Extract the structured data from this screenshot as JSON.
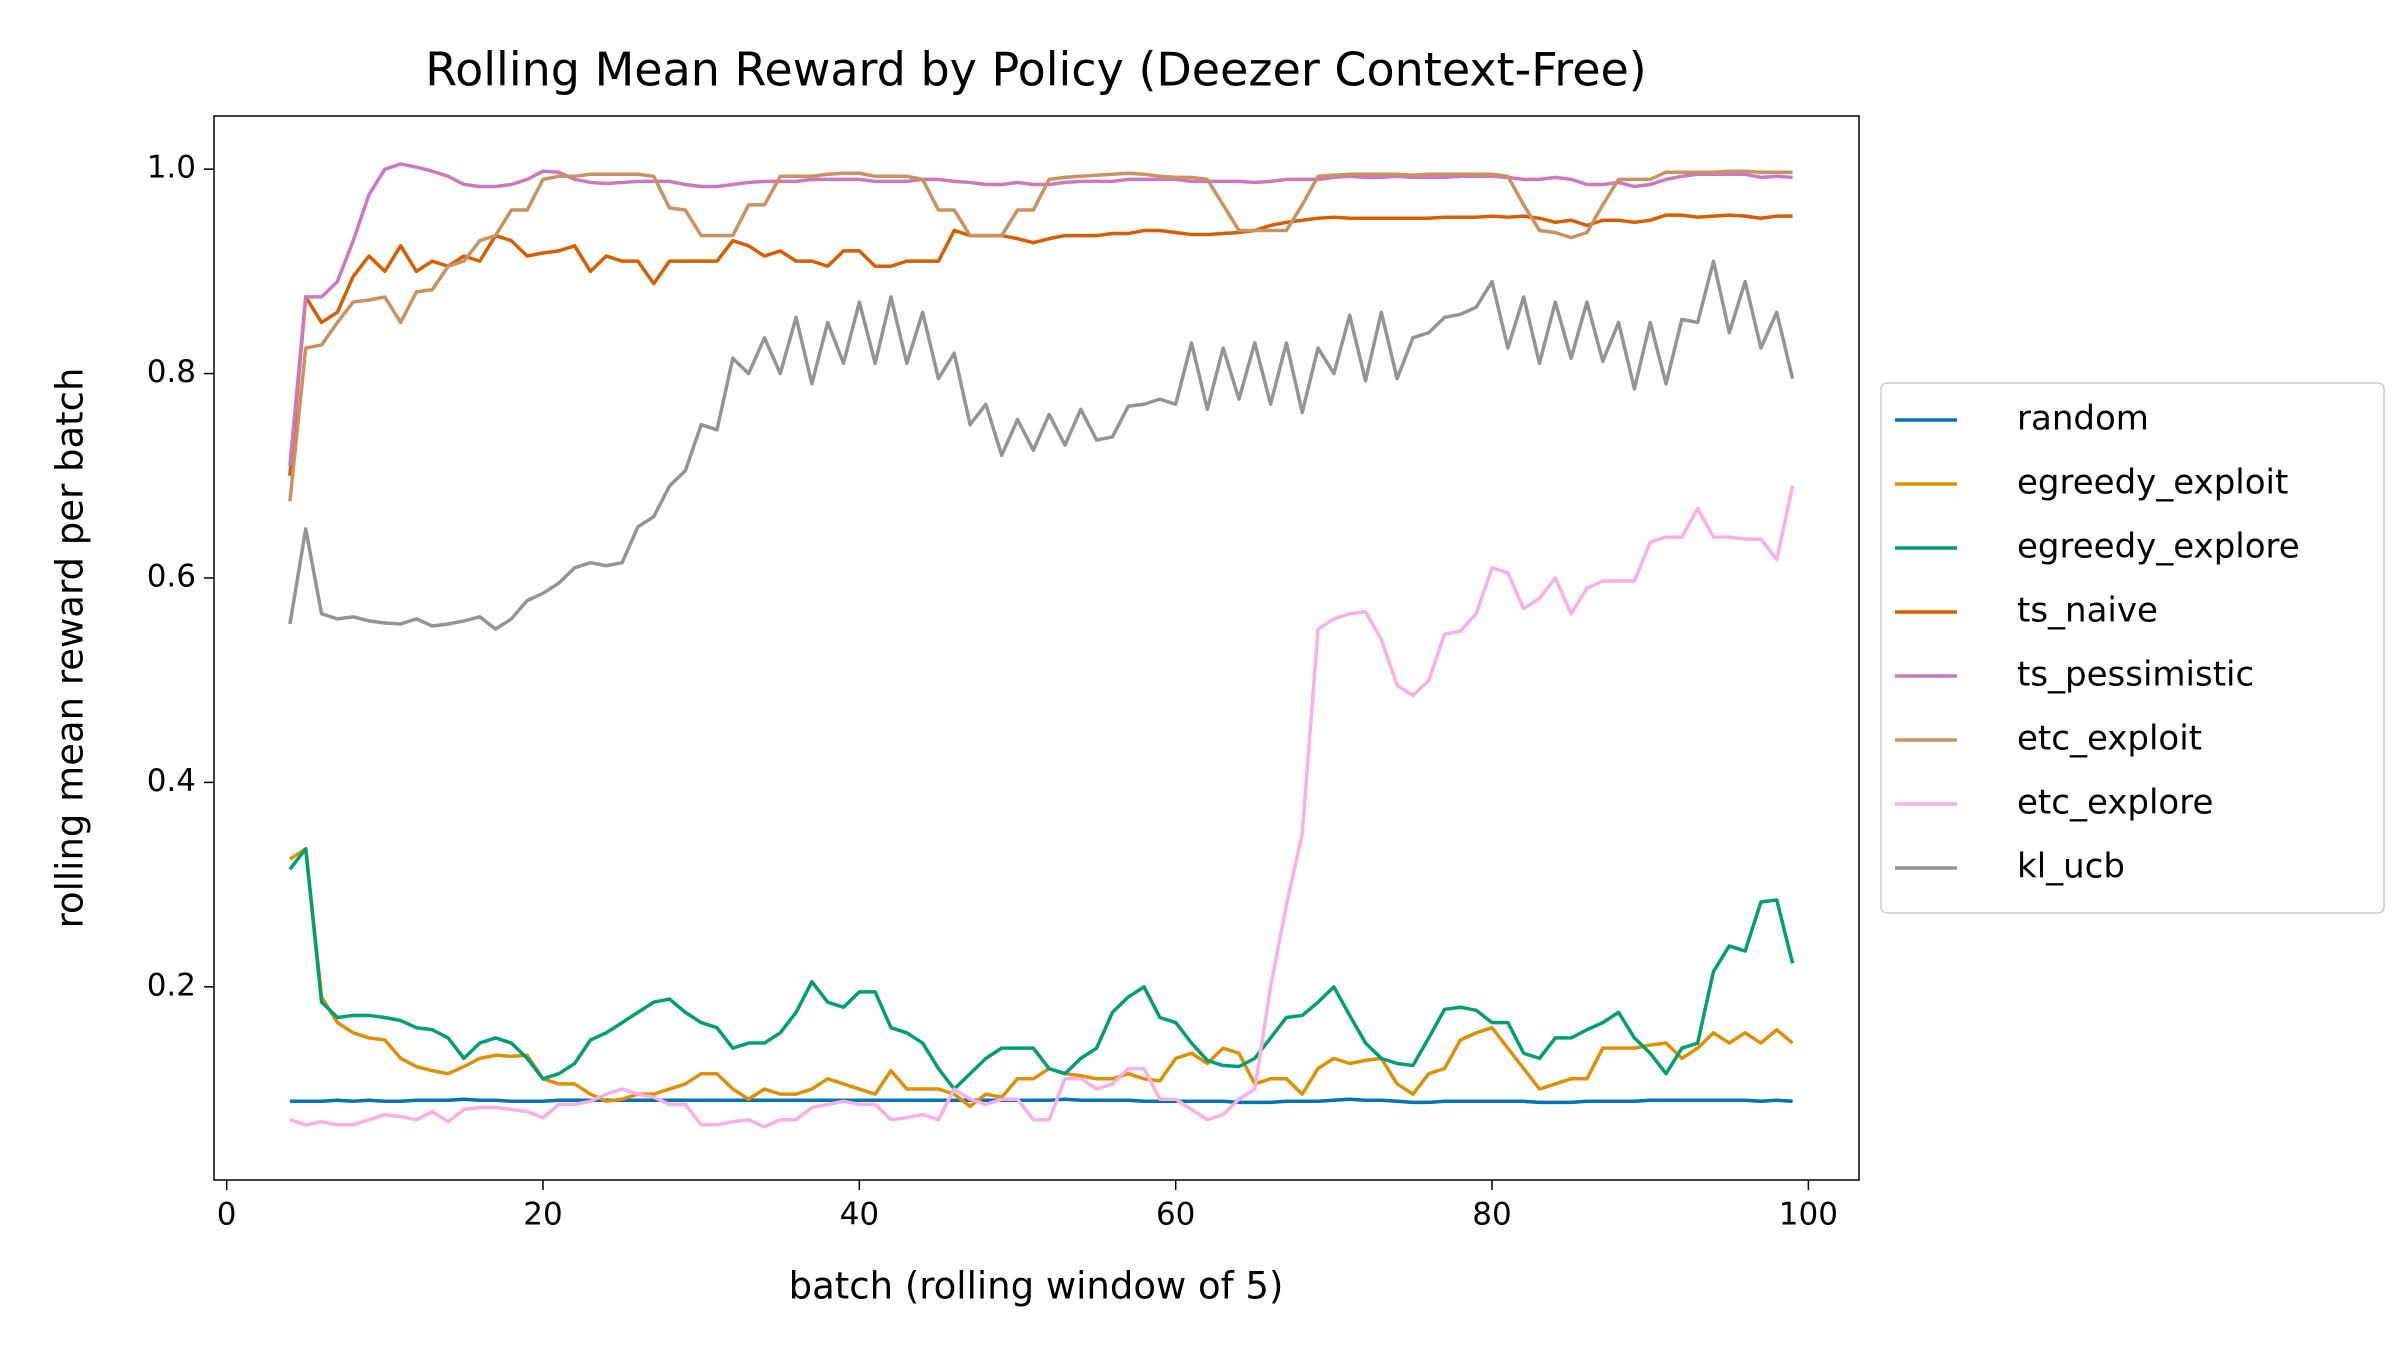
{
  "chart_data": {
    "type": "line",
    "title": "Rolling Mean Reward by Policy (Deezer Context-Free)",
    "x_label": "batch (rolling window of 5)",
    "y_label": "rolling mean reward per batch",
    "x": [
      4,
      5,
      6,
      7,
      8,
      9,
      10,
      11,
      12,
      13,
      14,
      15,
      16,
      17,
      18,
      19,
      20,
      21,
      22,
      23,
      24,
      25,
      26,
      27,
      28,
      29,
      30,
      31,
      32,
      33,
      34,
      35,
      36,
      37,
      38,
      39,
      40,
      41,
      42,
      43,
      44,
      45,
      46,
      47,
      48,
      49,
      50,
      51,
      52,
      53,
      54,
      55,
      56,
      57,
      58,
      59,
      60,
      61,
      62,
      63,
      64,
      65,
      66,
      67,
      68,
      69,
      70,
      71,
      72,
      73,
      74,
      75,
      76,
      77,
      78,
      79,
      80,
      81,
      82,
      83,
      84,
      85,
      86,
      87,
      88,
      89,
      90,
      91,
      92,
      93,
      94,
      95,
      96,
      97,
      98,
      99
    ],
    "xlim": [
      -0.8,
      103.2
    ],
    "xticks": [
      0,
      20,
      40,
      60,
      80,
      100
    ],
    "ylim": [
      0.011,
      1.052
    ],
    "yticks": [
      0.2,
      0.4,
      0.6,
      0.8,
      {
        "value": 1,
        "label": "1.0"
      }
    ],
    "grid": false,
    "legend": "right",
    "series": [
      {
        "name": "random",
        "color": "#0173b2",
        "values": [
          0.088,
          0.088,
          0.088,
          0.089,
          0.088,
          0.089,
          0.088,
          0.088,
          0.089,
          0.089,
          0.089,
          0.09,
          0.089,
          0.089,
          0.088,
          0.088,
          0.088,
          0.089,
          0.089,
          0.089,
          0.089,
          0.089,
          0.089,
          0.089,
          0.089,
          0.089,
          0.089,
          0.089,
          0.089,
          0.089,
          0.089,
          0.089,
          0.089,
          0.089,
          0.089,
          0.089,
          0.089,
          0.089,
          0.089,
          0.089,
          0.089,
          0.089,
          0.089,
          0.089,
          0.089,
          0.089,
          0.089,
          0.089,
          0.089,
          0.09,
          0.089,
          0.089,
          0.089,
          0.089,
          0.088,
          0.088,
          0.088,
          0.088,
          0.088,
          0.088,
          0.087,
          0.087,
          0.087,
          0.088,
          0.088,
          0.088,
          0.089,
          0.09,
          0.089,
          0.089,
          0.088,
          0.087,
          0.087,
          0.088,
          0.088,
          0.088,
          0.088,
          0.088,
          0.088,
          0.087,
          0.087,
          0.087,
          0.088,
          0.088,
          0.088,
          0.088,
          0.089,
          0.089,
          0.089,
          0.089,
          0.089,
          0.089,
          0.089,
          0.088,
          0.089,
          0.088
        ]
      },
      {
        "name": "egreedy_exploit",
        "color": "#de8f05",
        "values": [
          0.325,
          0.335,
          0.19,
          0.165,
          0.155,
          0.15,
          0.148,
          0.13,
          0.122,
          0.118,
          0.115,
          0.122,
          0.13,
          0.133,
          0.132,
          0.133,
          0.11,
          0.105,
          0.105,
          0.095,
          0.088,
          0.09,
          0.095,
          0.095,
          0.1,
          0.105,
          0.115,
          0.115,
          0.1,
          0.09,
          0.1,
          0.095,
          0.095,
          0.1,
          0.11,
          0.105,
          0.1,
          0.095,
          0.118,
          0.1,
          0.1,
          0.1,
          0.095,
          0.083,
          0.095,
          0.092,
          0.11,
          0.11,
          0.12,
          0.115,
          0.113,
          0.11,
          0.11,
          0.115,
          0.11,
          0.108,
          0.13,
          0.135,
          0.125,
          0.14,
          0.135,
          0.105,
          0.11,
          0.11,
          0.095,
          0.12,
          0.13,
          0.125,
          0.128,
          0.13,
          0.105,
          0.095,
          0.115,
          0.12,
          0.148,
          0.155,
          0.16,
          0.14,
          0.12,
          0.1,
          0.105,
          0.11,
          0.11,
          0.14,
          0.14,
          0.14,
          0.143,
          0.145,
          0.13,
          0.14,
          0.155,
          0.145,
          0.155,
          0.145,
          0.158,
          0.145
        ]
      },
      {
        "name": "egreedy_explore",
        "color": "#029e73",
        "values": [
          0.315,
          0.335,
          0.185,
          0.17,
          0.172,
          0.172,
          0.17,
          0.167,
          0.16,
          0.158,
          0.15,
          0.13,
          0.145,
          0.15,
          0.145,
          0.13,
          0.11,
          0.115,
          0.125,
          0.148,
          0.155,
          0.165,
          0.175,
          0.185,
          0.188,
          0.175,
          0.165,
          0.16,
          0.14,
          0.145,
          0.145,
          0.155,
          0.175,
          0.205,
          0.185,
          0.18,
          0.195,
          0.195,
          0.16,
          0.155,
          0.145,
          0.12,
          0.1,
          0.115,
          0.13,
          0.14,
          0.14,
          0.14,
          0.12,
          0.115,
          0.13,
          0.14,
          0.175,
          0.19,
          0.2,
          0.17,
          0.165,
          0.145,
          0.128,
          0.123,
          0.122,
          0.13,
          0.15,
          0.17,
          0.172,
          0.185,
          0.2,
          0.172,
          0.145,
          0.13,
          0.125,
          0.123,
          0.15,
          0.178,
          0.18,
          0.177,
          0.165,
          0.165,
          0.135,
          0.13,
          0.15,
          0.15,
          0.158,
          0.165,
          0.175,
          0.15,
          0.135,
          0.115,
          0.14,
          0.145,
          0.215,
          0.24,
          0.235,
          0.283,
          0.285,
          0.223
        ]
      },
      {
        "name": "ts_naive",
        "color": "#d55e00",
        "values": [
          0.7,
          0.875,
          0.85,
          0.86,
          0.895,
          0.915,
          0.9,
          0.925,
          0.9,
          0.91,
          0.905,
          0.915,
          0.91,
          0.935,
          0.93,
          0.915,
          0.918,
          0.92,
          0.925,
          0.9,
          0.915,
          0.91,
          0.91,
          0.888,
          0.91,
          0.91,
          0.91,
          0.91,
          0.93,
          0.925,
          0.915,
          0.92,
          0.91,
          0.91,
          0.905,
          0.92,
          0.92,
          0.905,
          0.905,
          0.91,
          0.91,
          0.91,
          0.94,
          0.935,
          0.935,
          0.935,
          0.932,
          0.928,
          0.932,
          0.935,
          0.935,
          0.935,
          0.937,
          0.937,
          0.94,
          0.94,
          0.938,
          0.936,
          0.936,
          0.937,
          0.938,
          0.94,
          0.945,
          0.948,
          0.95,
          0.952,
          0.953,
          0.952,
          0.952,
          0.952,
          0.952,
          0.952,
          0.952,
          0.953,
          0.953,
          0.953,
          0.954,
          0.953,
          0.954,
          0.952,
          0.948,
          0.95,
          0.945,
          0.95,
          0.95,
          0.948,
          0.95,
          0.955,
          0.955,
          0.953,
          0.954,
          0.955,
          0.954,
          0.952,
          0.954,
          0.954
        ]
      },
      {
        "name": "ts_pessimistic",
        "color": "#cc78bc",
        "values": [
          0.71,
          0.875,
          0.875,
          0.89,
          0.93,
          0.975,
          1.0,
          1.005,
          1.002,
          0.998,
          0.993,
          0.985,
          0.983,
          0.983,
          0.985,
          0.99,
          0.998,
          0.997,
          0.99,
          0.987,
          0.986,
          0.987,
          0.988,
          0.988,
          0.988,
          0.985,
          0.983,
          0.983,
          0.985,
          0.987,
          0.988,
          0.988,
          0.988,
          0.99,
          0.99,
          0.99,
          0.99,
          0.988,
          0.988,
          0.988,
          0.99,
          0.99,
          0.988,
          0.987,
          0.985,
          0.985,
          0.987,
          0.985,
          0.985,
          0.987,
          0.988,
          0.988,
          0.988,
          0.99,
          0.99,
          0.99,
          0.99,
          0.988,
          0.988,
          0.988,
          0.988,
          0.987,
          0.988,
          0.99,
          0.99,
          0.99,
          0.992,
          0.993,
          0.992,
          0.992,
          0.993,
          0.992,
          0.992,
          0.992,
          0.993,
          0.993,
          0.993,
          0.992,
          0.99,
          0.99,
          0.992,
          0.99,
          0.985,
          0.985,
          0.987,
          0.983,
          0.985,
          0.99,
          0.993,
          0.995,
          0.995,
          0.995,
          0.995,
          0.992,
          0.993,
          0.992
        ]
      },
      {
        "name": "etc_exploit",
        "color": "#ca9161",
        "values": [
          0.675,
          0.825,
          0.828,
          0.85,
          0.87,
          0.872,
          0.875,
          0.85,
          0.88,
          0.882,
          0.905,
          0.91,
          0.93,
          0.935,
          0.96,
          0.96,
          0.99,
          0.993,
          0.993,
          0.995,
          0.995,
          0.995,
          0.995,
          0.993,
          0.962,
          0.96,
          0.935,
          0.935,
          0.935,
          0.965,
          0.965,
          0.993,
          0.993,
          0.993,
          0.995,
          0.996,
          0.996,
          0.993,
          0.993,
          0.993,
          0.99,
          0.96,
          0.96,
          0.935,
          0.935,
          0.935,
          0.96,
          0.96,
          0.99,
          0.992,
          0.993,
          0.994,
          0.995,
          0.996,
          0.995,
          0.993,
          0.992,
          0.992,
          0.99,
          0.965,
          0.94,
          0.94,
          0.94,
          0.94,
          0.965,
          0.993,
          0.994,
          0.995,
          0.995,
          0.995,
          0.995,
          0.994,
          0.995,
          0.995,
          0.995,
          0.995,
          0.995,
          0.993,
          0.965,
          0.94,
          0.938,
          0.933,
          0.938,
          0.965,
          0.99,
          0.99,
          0.99,
          0.997,
          0.997,
          0.997,
          0.997,
          0.998,
          0.998,
          0.997,
          0.997,
          0.997
        ]
      },
      {
        "name": "etc_explore",
        "color": "#fbafe4",
        "values": [
          0.07,
          0.065,
          0.068,
          0.065,
          0.065,
          0.07,
          0.075,
          0.073,
          0.07,
          0.078,
          0.068,
          0.08,
          0.082,
          0.082,
          0.08,
          0.078,
          0.072,
          0.085,
          0.085,
          0.088,
          0.095,
          0.1,
          0.095,
          0.092,
          0.085,
          0.085,
          0.065,
          0.065,
          0.068,
          0.07,
          0.063,
          0.07,
          0.07,
          0.082,
          0.085,
          0.088,
          0.085,
          0.085,
          0.07,
          0.072,
          0.075,
          0.07,
          0.1,
          0.09,
          0.085,
          0.09,
          0.09,
          0.07,
          0.07,
          0.11,
          0.11,
          0.1,
          0.105,
          0.12,
          0.12,
          0.09,
          0.09,
          0.08,
          0.07,
          0.075,
          0.09,
          0.1,
          0.2,
          0.28,
          0.35,
          0.55,
          0.56,
          0.565,
          0.567,
          0.54,
          0.495,
          0.485,
          0.5,
          0.545,
          0.548,
          0.565,
          0.61,
          0.605,
          0.57,
          0.58,
          0.6,
          0.565,
          0.59,
          0.597,
          0.597,
          0.597,
          0.635,
          0.64,
          0.64,
          0.668,
          0.64,
          0.64,
          0.638,
          0.638,
          0.618,
          0.69
        ]
      },
      {
        "name": "kl_ucb",
        "color": "#949494",
        "values": [
          0.555,
          0.648,
          0.565,
          0.56,
          0.562,
          0.558,
          0.556,
          0.555,
          0.56,
          0.553,
          0.555,
          0.558,
          0.562,
          0.55,
          0.56,
          0.578,
          0.585,
          0.595,
          0.61,
          0.615,
          0.612,
          0.615,
          0.65,
          0.66,
          0.69,
          0.705,
          0.75,
          0.745,
          0.815,
          0.8,
          0.835,
          0.8,
          0.855,
          0.79,
          0.85,
          0.81,
          0.87,
          0.81,
          0.875,
          0.81,
          0.86,
          0.795,
          0.82,
          0.75,
          0.77,
          0.72,
          0.755,
          0.725,
          0.76,
          0.73,
          0.765,
          0.735,
          0.738,
          0.768,
          0.77,
          0.775,
          0.77,
          0.83,
          0.765,
          0.825,
          0.775,
          0.83,
          0.77,
          0.83,
          0.762,
          0.825,
          0.8,
          0.857,
          0.793,
          0.86,
          0.795,
          0.835,
          0.84,
          0.855,
          0.858,
          0.865,
          0.89,
          0.825,
          0.875,
          0.81,
          0.87,
          0.815,
          0.87,
          0.812,
          0.85,
          0.785,
          0.85,
          0.79,
          0.853,
          0.85,
          0.91,
          0.84,
          0.89,
          0.825,
          0.86,
          0.795
        ]
      }
    ]
  }
}
